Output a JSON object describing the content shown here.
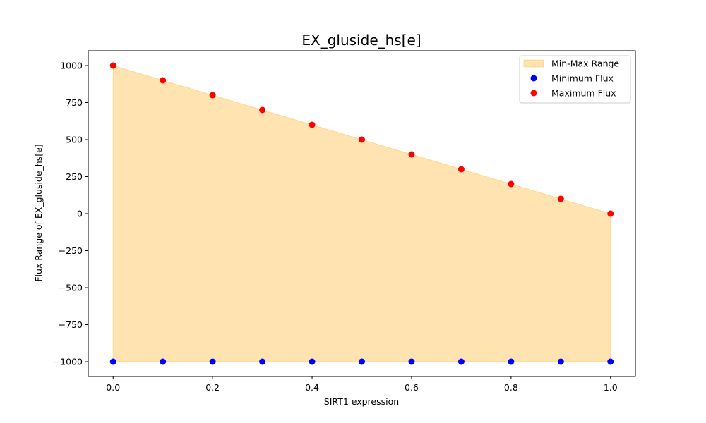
{
  "chart_data": {
    "type": "scatter",
    "title": "EX_gluside_hs[e]",
    "xlabel": "SIRT1 expression",
    "ylabel": "Flux Range of EX_gluside_hs[e]",
    "x": [
      0.0,
      0.1,
      0.2,
      0.3,
      0.4,
      0.5,
      0.6,
      0.7,
      0.8,
      0.9,
      1.0
    ],
    "series": [
      {
        "name": "Minimum Flux",
        "kind": "points",
        "color": "#0000ff",
        "values": [
          -1000,
          -1000,
          -1000,
          -1000,
          -1000,
          -1000,
          -1000,
          -1000,
          -1000,
          -1000,
          -1000
        ]
      },
      {
        "name": "Maximum Flux",
        "kind": "points",
        "color": "#ff0000",
        "values": [
          1000,
          900,
          800,
          700,
          600,
          500,
          400,
          300,
          200,
          100,
          0
        ]
      }
    ],
    "fill": {
      "name": "Min-Max Range",
      "color": "#ffa500",
      "alpha": 0.3,
      "lower": "Minimum Flux",
      "upper": "Maximum Flux"
    },
    "xlim": [
      -0.05,
      1.05
    ],
    "ylim": [
      -1100,
      1100
    ],
    "xticks": [
      0.0,
      0.2,
      0.4,
      0.6,
      0.8,
      1.0
    ],
    "xtick_labels": [
      "0.0",
      "0.2",
      "0.4",
      "0.6",
      "0.8",
      "1.0"
    ],
    "yticks": [
      -1000,
      -750,
      -500,
      -250,
      0,
      250,
      500,
      750,
      1000
    ],
    "ytick_labels": [
      "−1000",
      "−750",
      "−500",
      "−250",
      "0",
      "250",
      "500",
      "750",
      "1000"
    ],
    "grid": false,
    "legend_position": "top-right",
    "legend_entries": [
      {
        "label": "Min-Max Range",
        "marker": "patch",
        "color": "#ffa500"
      },
      {
        "label": "Minimum Flux",
        "marker": "dot",
        "color": "#0000ff"
      },
      {
        "label": "Maximum Flux",
        "marker": "dot",
        "color": "#ff0000"
      }
    ]
  }
}
